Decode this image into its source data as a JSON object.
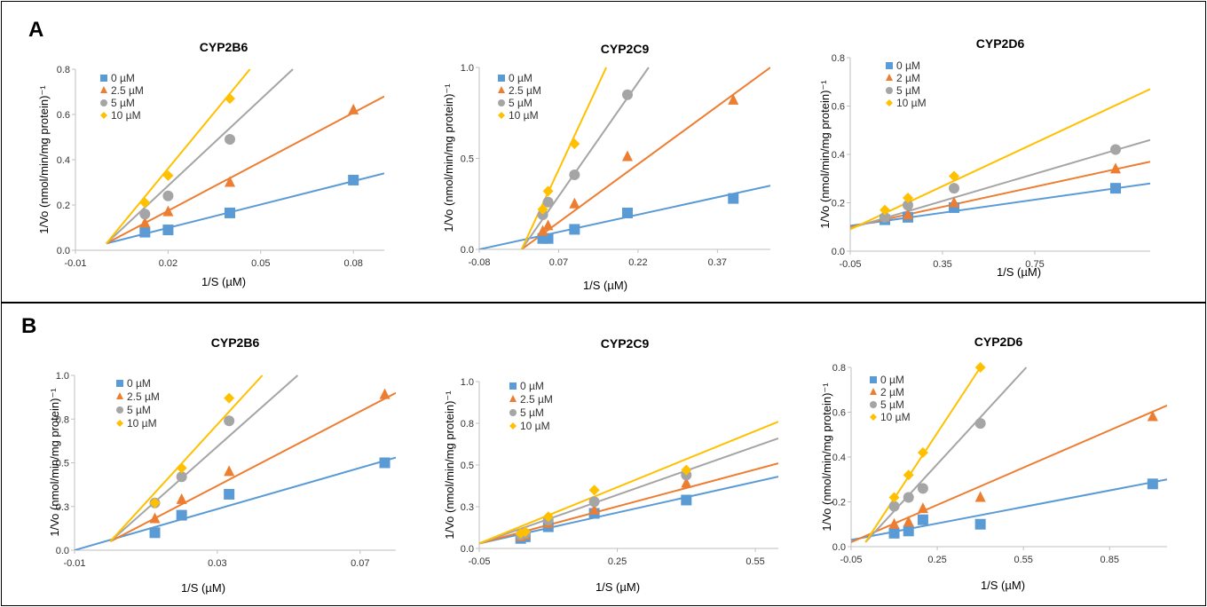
{
  "panels": [
    {
      "label": "A"
    },
    {
      "label": "B"
    }
  ],
  "colors": {
    "s0": "#5B9BD5",
    "s1": "#ED7D31",
    "s2": "#A5A5A5",
    "s3": "#FFC000",
    "axis": "#BFBFBF",
    "text": "#333333"
  },
  "chart_data": [
    {
      "panel": "A",
      "type": "scatter",
      "title": "CYP2B6",
      "xlabel": "1/S (µM)",
      "ylabel": "1/Vo (nmol/min/mg protein)⁻¹",
      "xlim": [
        -0.01,
        0.09
      ],
      "ylim": [
        0,
        0.8
      ],
      "xticks": [
        -0.01,
        0.02,
        0.05,
        0.08
      ],
      "xtick_labels": [
        "-0.01",
        "0.02",
        "0.05",
        "0.08"
      ],
      "yticks": [
        0,
        0.2,
        0.4,
        0.6,
        0.8
      ],
      "ytick_labels": [
        "0.0",
        "0.2",
        "0.4",
        "0.6",
        "0.8"
      ],
      "grid": false,
      "legend_position": "top-left",
      "series": [
        {
          "name": "0 µM",
          "marker": "square",
          "x": [
            0.0125,
            0.02,
            0.04,
            0.08
          ],
          "y": [
            0.08,
            0.09,
            0.165,
            0.31
          ],
          "line": [
            [
              0.0,
              0.03
            ],
            [
              0.09,
              0.34
            ]
          ]
        },
        {
          "name": "2.5 µM",
          "marker": "triangle",
          "x": [
            0.0125,
            0.02,
            0.04,
            0.08
          ],
          "y": [
            0.12,
            0.17,
            0.3,
            0.62
          ],
          "line": [
            [
              0.0,
              0.03
            ],
            [
              0.09,
              0.68
            ]
          ]
        },
        {
          "name": "5 µM",
          "marker": "circle",
          "x": [
            0.0125,
            0.02,
            0.04
          ],
          "y": [
            0.16,
            0.24,
            0.49
          ],
          "line": [
            [
              0.0,
              0.03
            ],
            [
              0.0604,
              0.8
            ]
          ]
        },
        {
          "name": "10 µM",
          "marker": "diamond",
          "x": [
            0.0125,
            0.02,
            0.04
          ],
          "y": [
            0.21,
            0.33,
            0.67
          ],
          "line": [
            [
              0.0,
              0.03
            ],
            [
              0.0465,
              0.8
            ]
          ]
        }
      ]
    },
    {
      "panel": "A",
      "type": "scatter",
      "title": "CYP2C9",
      "xlabel": "1/S (µM)",
      "ylabel": "1/Vo (nmol/min/mg protein)⁻¹",
      "xlim": [
        -0.08,
        0.47
      ],
      "ylim": [
        0,
        1.0
      ],
      "xticks": [
        -0.08,
        0.07,
        0.22,
        0.37
      ],
      "xtick_labels": [
        "-0.08",
        "0.07",
        "0.22",
        "0.37"
      ],
      "yticks": [
        0,
        0.5,
        1.0
      ],
      "ytick_labels": [
        "0.0",
        "0.5",
        "1.0"
      ],
      "grid": false,
      "legend_position": "top-left",
      "series": [
        {
          "name": "0 µM",
          "marker": "square",
          "x": [
            0.04,
            0.05,
            0.1,
            0.2,
            0.4
          ],
          "y": [
            0.06,
            0.06,
            0.11,
            0.2,
            0.28
          ],
          "line": [
            [
              -0.08,
              0.0
            ],
            [
              0.47,
              0.35
            ]
          ]
        },
        {
          "name": "2.5 µM",
          "marker": "triangle",
          "x": [
            0.04,
            0.05,
            0.1,
            0.2,
            0.4
          ],
          "y": [
            0.1,
            0.13,
            0.25,
            0.51,
            0.82
          ],
          "line": [
            [
              0.0,
              0.0
            ],
            [
              0.47,
              1.0
            ]
          ]
        },
        {
          "name": "5 µM",
          "marker": "circle",
          "x": [
            0.04,
            0.05,
            0.1,
            0.2
          ],
          "y": [
            0.19,
            0.26,
            0.41,
            0.85
          ],
          "line": [
            [
              0.0,
              0.0
            ],
            [
              0.24,
              1.0
            ]
          ]
        },
        {
          "name": "10 µM",
          "marker": "diamond",
          "x": [
            0.04,
            0.05,
            0.1
          ],
          "y": [
            0.22,
            0.32,
            0.58
          ],
          "line": [
            [
              0.0,
              0.0
            ],
            [
              0.16,
              1.0
            ]
          ]
        }
      ]
    },
    {
      "panel": "A",
      "type": "scatter",
      "title": "CYP2D6",
      "xlabel": "1/S (µM)",
      "ylabel": "1/Vo (nmol/min/mg protein)⁻¹",
      "xlim": [
        -0.05,
        1.25
      ],
      "ylim": [
        0,
        0.8
      ],
      "xticks": [
        -0.05,
        0.35,
        0.75
      ],
      "xtick_labels": [
        "-0.05",
        "0.35",
        "0.75"
      ],
      "yticks": [
        0,
        0.2,
        0.4,
        0.6,
        0.8
      ],
      "ytick_labels": [
        "0.0",
        "0.2",
        "0.4",
        "0.6",
        "0.8"
      ],
      "grid": false,
      "legend_position": "top-left",
      "series": [
        {
          "name": "0 µM",
          "marker": "square",
          "x": [
            0.1,
            0.2,
            0.4,
            1.1
          ],
          "y": [
            0.13,
            0.14,
            0.18,
            0.26
          ],
          "line": [
            [
              -0.05,
              0.105
            ],
            [
              1.25,
              0.28
            ]
          ]
        },
        {
          "name": "2 µM",
          "marker": "triangle",
          "x": [
            0.1,
            0.2,
            0.4,
            1.1
          ],
          "y": [
            0.14,
            0.15,
            0.2,
            0.34
          ],
          "line": [
            [
              -0.05,
              0.1
            ],
            [
              1.25,
              0.37
            ]
          ]
        },
        {
          "name": "5 µM",
          "marker": "circle",
          "x": [
            0.1,
            0.2,
            0.4,
            1.1
          ],
          "y": [
            0.14,
            0.19,
            0.26,
            0.42
          ],
          "line": [
            [
              -0.05,
              0.095
            ],
            [
              1.25,
              0.46
            ]
          ]
        },
        {
          "name": "10 µM",
          "marker": "diamond",
          "x": [
            0.1,
            0.2,
            0.4
          ],
          "y": [
            0.17,
            0.22,
            0.31
          ],
          "line": [
            [
              -0.05,
              0.09
            ],
            [
              1.25,
              0.67
            ]
          ]
        }
      ]
    },
    {
      "panel": "B",
      "type": "scatter",
      "title": "CYP2B6",
      "xlabel": "1/S (µM)",
      "ylabel": "1/Vo (nmol/min/mg protein)⁻¹",
      "xlim": [
        -0.01,
        0.08
      ],
      "ylim": [
        0,
        1.0
      ],
      "xticks": [
        -0.01,
        0.03,
        0.07
      ],
      "xtick_labels": [
        "-0.01",
        "0.03",
        "0.07"
      ],
      "yticks": [
        0,
        0.25,
        0.5,
        0.75,
        1.0
      ],
      "ytick_labels": [
        "0.0",
        "0.3",
        "0.5",
        "0.8",
        "1.0"
      ],
      "grid": false,
      "legend_position": "top-left",
      "series": [
        {
          "name": "0 µM",
          "marker": "square",
          "x": [
            0.0125,
            0.02,
            0.0333,
            0.0769
          ],
          "y": [
            0.1,
            0.2,
            0.32,
            0.5
          ],
          "line": [
            [
              -0.01,
              0.0
            ],
            [
              0.08,
              0.53
            ]
          ]
        },
        {
          "name": "2.5 µM",
          "marker": "triangle",
          "x": [
            0.0125,
            0.02,
            0.0333,
            0.0769
          ],
          "y": [
            0.18,
            0.29,
            0.45,
            0.89
          ],
          "line": [
            [
              0.0,
              0.05
            ],
            [
              0.08,
              0.9
            ]
          ]
        },
        {
          "name": "5 µM",
          "marker": "circle",
          "x": [
            0.0125,
            0.02,
            0.0333
          ],
          "y": [
            0.27,
            0.42,
            0.74
          ],
          "line": [
            [
              0.0,
              0.05
            ],
            [
              0.0525,
              1.0
            ]
          ]
        },
        {
          "name": "10 µM",
          "marker": "diamond",
          "x": [
            0.0125,
            0.02,
            0.0333
          ],
          "y": [
            0.27,
            0.47,
            0.87
          ],
          "line": [
            [
              0.0,
              0.05
            ],
            [
              0.0426,
              1.0
            ]
          ]
        }
      ]
    },
    {
      "panel": "B",
      "type": "scatter",
      "title": "CYP2C9",
      "xlabel": "1/S (µM)",
      "ylabel": "1/Vo (nmol/min/mg protein)⁻¹",
      "xlim": [
        -0.05,
        0.6
      ],
      "ylim": [
        0,
        1.0
      ],
      "xticks": [
        -0.05,
        0.25,
        0.55
      ],
      "xtick_labels": [
        "-0.05",
        "0.25",
        "0.55"
      ],
      "yticks": [
        0,
        0.25,
        0.5,
        0.75,
        1.0
      ],
      "ytick_labels": [
        "0.0",
        "0.3",
        "0.5",
        "0.8",
        "1.0"
      ],
      "grid": false,
      "legend_position": "top-left",
      "series": [
        {
          "name": "0 µM",
          "marker": "square",
          "x": [
            0.04,
            0.05,
            0.1,
            0.2,
            0.4
          ],
          "y": [
            0.06,
            0.07,
            0.13,
            0.21,
            0.29
          ],
          "line": [
            [
              -0.05,
              0.03
            ],
            [
              0.6,
              0.43
            ]
          ]
        },
        {
          "name": "2.5 µM",
          "marker": "triangle",
          "x": [
            0.04,
            0.05,
            0.1,
            0.2,
            0.4
          ],
          "y": [
            0.07,
            0.08,
            0.15,
            0.23,
            0.39
          ],
          "line": [
            [
              -0.05,
              0.03
            ],
            [
              0.6,
              0.51
            ]
          ]
        },
        {
          "name": "5 µM",
          "marker": "circle",
          "x": [
            0.04,
            0.05,
            0.1,
            0.2,
            0.4
          ],
          "y": [
            0.08,
            0.09,
            0.17,
            0.28,
            0.44
          ],
          "line": [
            [
              -0.05,
              0.03
            ],
            [
              0.6,
              0.66
            ]
          ]
        },
        {
          "name": "10 µM",
          "marker": "diamond",
          "x": [
            0.04,
            0.05,
            0.1,
            0.2,
            0.4
          ],
          "y": [
            0.09,
            0.1,
            0.19,
            0.35,
            0.47
          ],
          "line": [
            [
              -0.05,
              0.03
            ],
            [
              0.6,
              0.76
            ]
          ]
        }
      ]
    },
    {
      "panel": "B",
      "type": "scatter",
      "title": "CYP2D6",
      "xlabel": "1/S (µM)",
      "ylabel": "1/Vo (nmol/min/mg protein)⁻¹",
      "xlim": [
        -0.05,
        1.05
      ],
      "ylim": [
        0,
        0.8
      ],
      "xticks": [
        -0.05,
        0.25,
        0.55,
        0.85
      ],
      "xtick_labels": [
        "-0.05",
        "0.25",
        "0.55",
        "0.85"
      ],
      "yticks": [
        0,
        0.2,
        0.4,
        0.6,
        0.8
      ],
      "ytick_labels": [
        "0.0",
        "0.2",
        "0.4",
        "0.6",
        "0.8"
      ],
      "grid": false,
      "legend_position": "top-left",
      "series": [
        {
          "name": "0 µM",
          "marker": "square",
          "x": [
            0.1,
            0.15,
            0.2,
            0.4,
            1.0
          ],
          "y": [
            0.06,
            0.07,
            0.12,
            0.1,
            0.28
          ],
          "line": [
            [
              -0.05,
              0.03
            ],
            [
              1.05,
              0.3
            ]
          ]
        },
        {
          "name": "2 µM",
          "marker": "triangle",
          "x": [
            0.1,
            0.15,
            0.2,
            0.4,
            1.0
          ],
          "y": [
            0.1,
            0.11,
            0.17,
            0.22,
            0.58
          ],
          "line": [
            [
              -0.05,
              0.02
            ],
            [
              1.05,
              0.63
            ]
          ]
        },
        {
          "name": "5 µM",
          "marker": "circle",
          "x": [
            0.1,
            0.15,
            0.2,
            0.4
          ],
          "y": [
            0.18,
            0.22,
            0.26,
            0.55
          ],
          "line": [
            [
              0.0,
              0.02
            ],
            [
              0.56,
              0.8
            ]
          ]
        },
        {
          "name": "10 µM",
          "marker": "diamond",
          "x": [
            0.1,
            0.15,
            0.2,
            0.4
          ],
          "y": [
            0.22,
            0.32,
            0.42,
            0.8
          ],
          "line": [
            [
              0.0,
              0.02
            ],
            [
              0.4,
              0.8
            ]
          ]
        }
      ]
    }
  ]
}
